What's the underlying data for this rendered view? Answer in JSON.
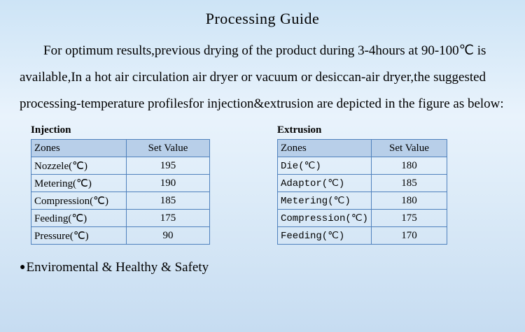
{
  "title": "Processing Guide",
  "paragraph": "For optimum results,previous drying of the product during 3-4hours at 90-100℃ is available,In a hot air circulation air dryer or vacuum or desiccan-air dryer,the suggested processing-temperature profilesfor injection&extrusion are depicted in the figure as below:",
  "tables": [
    {
      "label": "Injection",
      "headers": [
        "Zones",
        "Set Value"
      ],
      "rows": [
        [
          "Nozzele(℃)",
          "195"
        ],
        [
          "Metering(℃)",
          "190"
        ],
        [
          "Compression(℃)",
          "185"
        ],
        [
          "Feeding(℃)",
          "175"
        ],
        [
          "Pressure(℃)",
          "90"
        ]
      ]
    },
    {
      "label": "Extrusion",
      "headers": [
        "Zones",
        "Set Value"
      ],
      "rows": [
        [
          "Die(℃)",
          "180"
        ],
        [
          "Adaptor(℃)",
          "185"
        ],
        [
          "Metering(℃)",
          "180"
        ],
        [
          "Compression(℃)",
          "175"
        ],
        [
          "Feeding(℃)",
          "170"
        ]
      ]
    }
  ],
  "footer": {
    "bullet": "●",
    "text": "Enviromental & Healthy & Safety"
  },
  "colors": {
    "table_border": "#4f81bd",
    "table_header_bg": "#b8cfe9",
    "background_top": "#cde4f6",
    "background_bottom": "#c6dcf1"
  }
}
